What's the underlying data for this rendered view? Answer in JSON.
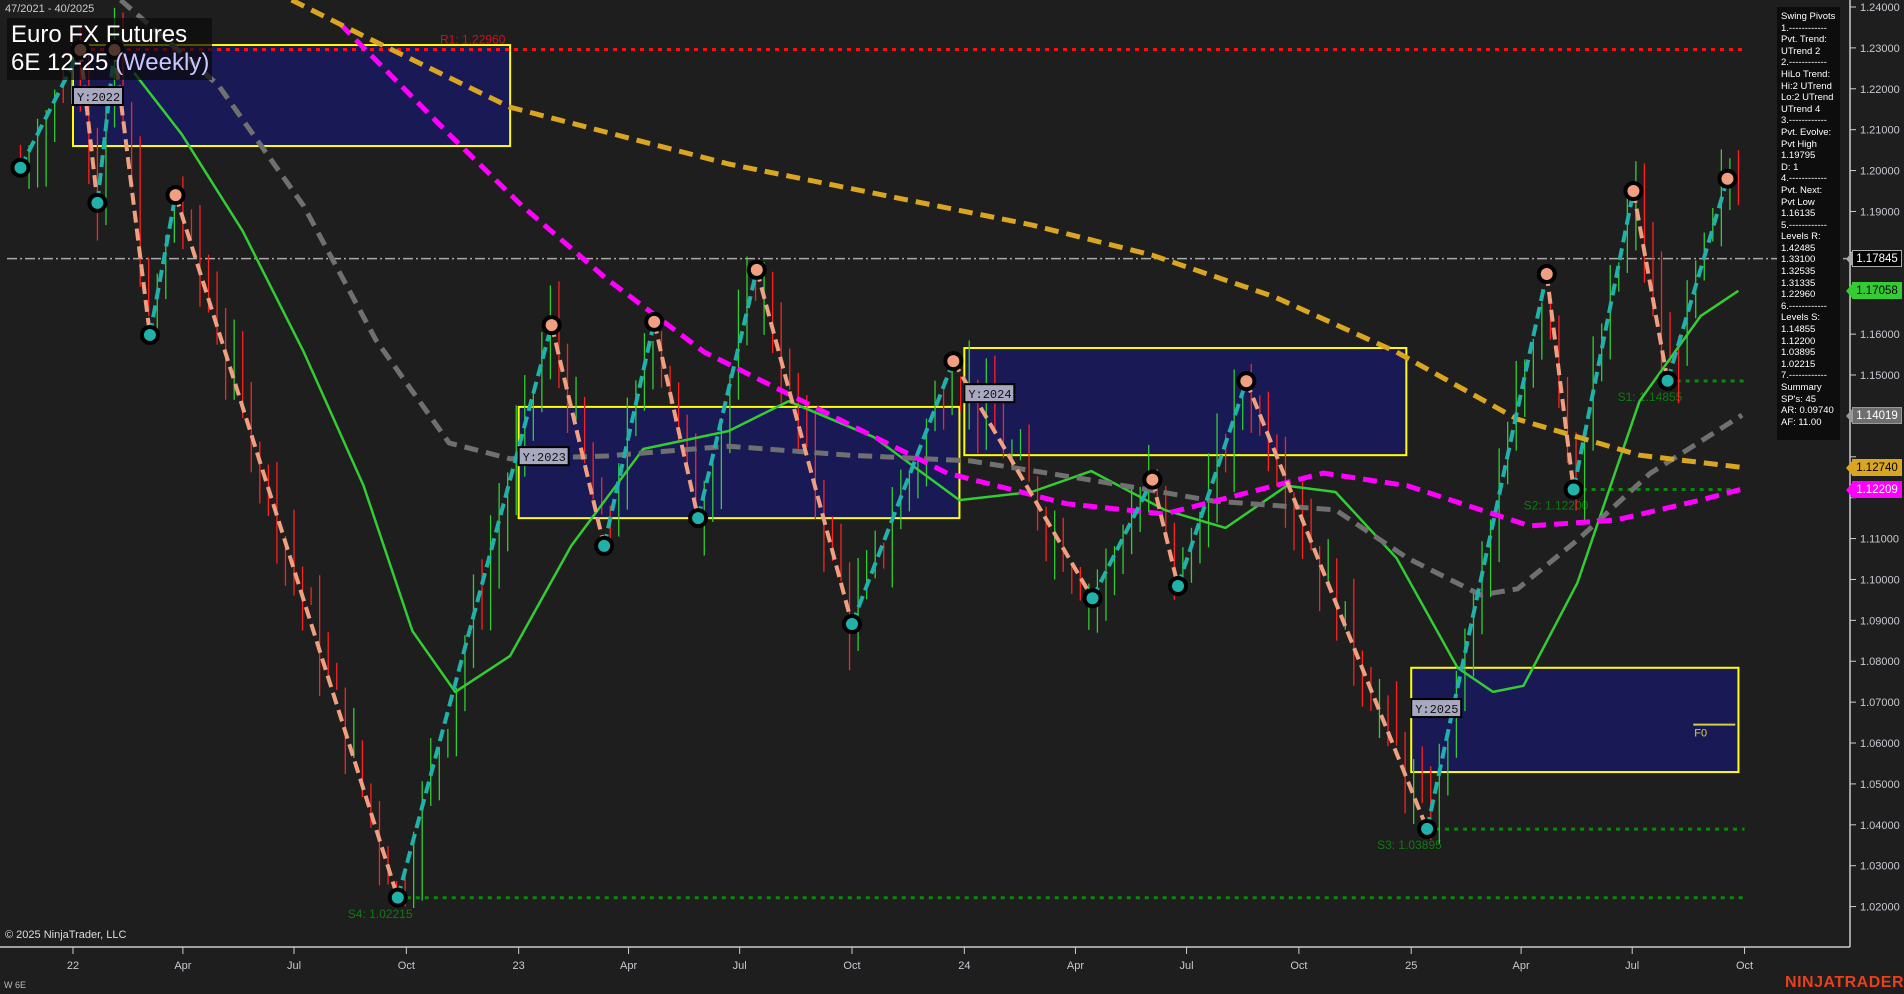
{
  "header": {
    "date_range": "47/2021 - 40/2025",
    "instrument": "Euro FX Futures",
    "contract": "6E 12-25",
    "period": "(Weekly)"
  },
  "info_panel": {
    "lines": [
      "Swing Pivots",
      "1.------------",
      "Pvt. Trend:",
      "UTrend 2",
      "2.------------",
      "HiLo Trend:",
      "Hi:2 UTrend",
      "Lo:2 UTrend",
      "UTrend 4",
      "3.------------",
      "Pvt. Evolve:",
      "Pvt High",
      "1.19795",
      "D: 1",
      "4.------------",
      "Pvt. Next:",
      "Pvt Low",
      "1.16135",
      "5.------------",
      "Levels R:",
      "1.42485",
      "1.33100",
      "1.32535",
      "1.31335",
      "1.22960",
      "6.------------",
      "Levels S:",
      "1.14855",
      "1.12200",
      "1.03895",
      "1.02215",
      "7.------------",
      "Summary",
      "SP's: 45",
      "AR: 0.09740",
      "AF: 11.00"
    ]
  },
  "price_tags": [
    {
      "label": "1.17845",
      "value": 1.17845,
      "bg": "#000000",
      "fg": "#ffffff",
      "border": "#aaaaaa",
      "name": "last-price-tag"
    },
    {
      "label": "1.17058",
      "value": 1.17058,
      "bg": "#33cc33",
      "fg": "#000000",
      "border": "#33cc33",
      "name": "green-ma-tag"
    },
    {
      "label": "1.14019",
      "value": 1.14019,
      "bg": "#6e6e6e",
      "fg": "#ffffff",
      "border": "#999999",
      "name": "gray-ma-tag"
    },
    {
      "label": "1.12740",
      "value": 1.1274,
      "bg": "#daa520",
      "fg": "#000000",
      "border": "#daa520",
      "name": "orange-ma-tag"
    },
    {
      "label": "1.12209",
      "value": 1.12209,
      "bg": "#ff00ff",
      "fg": "#ffffff",
      "border": "#ff00ff",
      "name": "magenta-ma-tag"
    }
  ],
  "footer": {
    "copyright": "© 2025 NinjaTrader, LLC",
    "series_label": "W 6E",
    "brand": "NINJATRADER"
  },
  "colors": {
    "background": "#1e1e1e",
    "up_bar": "#33cc33",
    "down_bar": "#ff2020",
    "pivot_high": "#f0a080",
    "pivot_low": "#20b2aa",
    "fast_ma": "#33cc33",
    "mid_ma": "#707070",
    "slow_ma": "#ff00ff",
    "long_ma": "#daa520",
    "year_box_fill": "#191955",
    "year_box_border": "#ffff00",
    "resistance": "#ff1010",
    "support": "#0a8a0a",
    "last_price_line": "#aaaaaa"
  },
  "chart_data": {
    "type": "line",
    "yaxis": {
      "min": 1.02,
      "max": 1.24,
      "step": 0.01,
      "position": "right",
      "decimals": 5
    },
    "xaxis": {
      "ticks": [
        {
          "label": "22",
          "date": "2022-01-01"
        },
        {
          "label": "Apr",
          "date": "2022-04-01"
        },
        {
          "label": "Jul",
          "date": "2022-07-01"
        },
        {
          "label": "Oct",
          "date": "2022-10-01"
        },
        {
          "label": "23",
          "date": "2023-01-01"
        },
        {
          "label": "Apr",
          "date": "2023-04-01"
        },
        {
          "label": "Jul",
          "date": "2023-07-01"
        },
        {
          "label": "Oct",
          "date": "2023-10-01"
        },
        {
          "label": "24",
          "date": "2024-01-01"
        },
        {
          "label": "Apr",
          "date": "2024-04-01"
        },
        {
          "label": "Jul",
          "date": "2024-07-01"
        },
        {
          "label": "Oct",
          "date": "2024-10-01"
        },
        {
          "label": "25",
          "date": "2025-01-01"
        },
        {
          "label": "Apr",
          "date": "2025-04-01"
        },
        {
          "label": "Jul",
          "date": "2025-07-01"
        },
        {
          "label": "Oct",
          "date": "2025-10-01"
        }
      ]
    },
    "last_price": 1.17845,
    "swing_pivots": [
      {
        "date": "2021-11-19",
        "price": 1.2007,
        "type": "low"
      },
      {
        "date": "2022-01-07",
        "price": 1.2295,
        "type": "high"
      },
      {
        "date": "2022-01-21",
        "price": 1.1921,
        "type": "low"
      },
      {
        "date": "2022-02-04",
        "price": 1.2295,
        "type": "high"
      },
      {
        "date": "2022-03-05",
        "price": 1.1598,
        "type": "low"
      },
      {
        "date": "2022-03-26",
        "price": 1.194,
        "type": "high"
      },
      {
        "date": "2022-09-24",
        "price": 1.0222,
        "type": "low"
      },
      {
        "date": "2023-01-28",
        "price": 1.1622,
        "type": "high"
      },
      {
        "date": "2023-03-12",
        "price": 1.1082,
        "type": "low"
      },
      {
        "date": "2023-04-22",
        "price": 1.163,
        "type": "high"
      },
      {
        "date": "2023-05-28",
        "price": 1.115,
        "type": "low"
      },
      {
        "date": "2023-07-15",
        "price": 1.1757,
        "type": "high"
      },
      {
        "date": "2023-10-01",
        "price": 1.0891,
        "type": "low"
      },
      {
        "date": "2023-12-23",
        "price": 1.1534,
        "type": "high"
      },
      {
        "date": "2024-04-15",
        "price": 1.0954,
        "type": "low"
      },
      {
        "date": "2024-06-03",
        "price": 1.1244,
        "type": "high"
      },
      {
        "date": "2024-06-24",
        "price": 1.0984,
        "type": "low"
      },
      {
        "date": "2024-08-19",
        "price": 1.1485,
        "type": "high"
      },
      {
        "date": "2025-01-14",
        "price": 1.039,
        "type": "low"
      },
      {
        "date": "2025-04-22",
        "price": 1.1747,
        "type": "high"
      },
      {
        "date": "2025-05-14",
        "price": 1.122,
        "type": "low"
      },
      {
        "date": "2025-07-02",
        "price": 1.195,
        "type": "high"
      },
      {
        "date": "2025-07-30",
        "price": 1.1486,
        "type": "low"
      },
      {
        "date": "2025-09-17",
        "price": 1.198,
        "type": "high"
      }
    ],
    "series": [
      {
        "key": "fast",
        "color": "#33cc33",
        "dashed": false,
        "points": [
          [
            "2022-02-20",
            1.2239
          ],
          [
            "2022-03-31",
            1.2089
          ],
          [
            "2022-05-20",
            1.1852
          ],
          [
            "2022-07-09",
            1.1556
          ],
          [
            "2022-08-27",
            1.1229
          ],
          [
            "2022-10-06",
            1.0874
          ],
          [
            "2022-11-10",
            1.0725
          ],
          [
            "2022-12-25",
            1.0813
          ],
          [
            "2023-02-13",
            1.1082
          ],
          [
            "2023-04-13",
            1.1319
          ],
          [
            "2023-06-22",
            1.1363
          ],
          [
            "2023-08-10",
            1.1436
          ],
          [
            "2023-10-19",
            1.1348
          ],
          [
            "2023-12-28",
            1.1194
          ],
          [
            "2024-02-25",
            1.1214
          ],
          [
            "2024-04-14",
            1.1265
          ],
          [
            "2024-06-13",
            1.117
          ],
          [
            "2024-08-02",
            1.1126
          ],
          [
            "2024-09-21",
            1.1229
          ],
          [
            "2024-10-31",
            1.1214
          ],
          [
            "2024-12-20",
            1.1052
          ],
          [
            "2025-02-08",
            1.0784
          ],
          [
            "2025-03-09",
            1.0725
          ],
          [
            "2025-04-03",
            1.074
          ],
          [
            "2025-05-17",
            1.0991
          ],
          [
            "2025-07-07",
            1.1436
          ],
          [
            "2025-08-26",
            1.1644
          ],
          [
            "2025-09-26",
            1.1706
          ]
        ]
      },
      {
        "key": "mid",
        "color": "#707070",
        "dashed": true,
        "points": [
          [
            "2022-02-09",
            1.2417
          ],
          [
            "2022-04-30",
            1.2209
          ],
          [
            "2022-07-09",
            1.1913
          ],
          [
            "2022-09-06",
            1.1586
          ],
          [
            "2022-11-05",
            1.1334
          ],
          [
            "2022-12-25",
            1.1295
          ],
          [
            "2023-03-14",
            1.1302
          ],
          [
            "2023-06-22",
            1.1326
          ],
          [
            "2023-09-29",
            1.1304
          ],
          [
            "2024-01-06",
            1.129
          ],
          [
            "2024-04-14",
            1.1243
          ],
          [
            "2024-07-23",
            1.1192
          ],
          [
            "2024-10-31",
            1.117
          ],
          [
            "2024-12-29",
            1.1052
          ],
          [
            "2025-02-27",
            1.0962
          ],
          [
            "2025-03-29",
            1.0977
          ],
          [
            "2025-05-17",
            1.1096
          ],
          [
            "2025-07-16",
            1.126
          ],
          [
            "2025-09-29",
            1.1402
          ]
        ]
      },
      {
        "key": "slow",
        "color": "#ff00ff",
        "dashed": true,
        "points": [
          [
            "2022-08-08",
            1.2358
          ],
          [
            "2022-11-05",
            1.2089
          ],
          [
            "2023-01-04",
            1.1913
          ],
          [
            "2023-03-14",
            1.1735
          ],
          [
            "2023-06-02",
            1.1556
          ],
          [
            "2023-09-10",
            1.1407
          ],
          [
            "2023-12-18",
            1.126
          ],
          [
            "2024-03-25",
            1.1185
          ],
          [
            "2024-06-13",
            1.116
          ],
          [
            "2024-08-22",
            1.1214
          ],
          [
            "2024-10-21",
            1.126
          ],
          [
            "2024-12-29",
            1.1229
          ],
          [
            "2025-04-08",
            1.1131
          ],
          [
            "2025-06-17",
            1.1145
          ],
          [
            "2025-08-26",
            1.1194
          ],
          [
            "2025-09-29",
            1.1221
          ]
        ]
      },
      {
        "key": "long",
        "color": "#daa520",
        "dashed": true,
        "points": [
          [
            "2022-06-29",
            1.2417
          ],
          [
            "2022-08-27",
            1.2329
          ],
          [
            "2022-12-25",
            1.2155
          ],
          [
            "2023-06-22",
            1.2016
          ],
          [
            "2024-02-25",
            1.1867
          ],
          [
            "2024-06-03",
            1.1793
          ],
          [
            "2024-09-11",
            1.1691
          ],
          [
            "2024-12-20",
            1.1556
          ],
          [
            "2025-03-29",
            1.1392
          ],
          [
            "2025-07-07",
            1.1304
          ],
          [
            "2025-09-29",
            1.1274
          ]
        ]
      }
    ],
    "year_boxes": [
      {
        "label": "Y:2022",
        "start": "2022-01-01",
        "end": "2022-12-25",
        "high": 1.2307,
        "low": 1.206
      },
      {
        "label": "Y:2023",
        "start": "2023-01-01",
        "end": "2023-12-28",
        "high": 1.1422,
        "low": 1.115
      },
      {
        "label": "Y:2024",
        "start": "2024-01-01",
        "end": "2024-12-28",
        "high": 1.1566,
        "low": 1.1304
      },
      {
        "label": "Y:2025",
        "start": "2025-01-01",
        "end": "2025-09-26",
        "high": 1.0784,
        "low": 1.0529
      }
    ],
    "levels": [
      {
        "label": "R1: 1.22960",
        "value": 1.2296,
        "start": "2022-01-01",
        "end": "2025-10-01",
        "kind": "resistance"
      },
      {
        "label": "S1: 1.14855",
        "value": 1.14855,
        "start": "2025-07-30",
        "end": "2025-10-01",
        "kind": "support"
      },
      {
        "label": "S2: 1.12200",
        "value": 1.122,
        "start": "2025-05-14",
        "end": "2025-10-01",
        "kind": "support"
      },
      {
        "label": "S3: 1.03895",
        "value": 1.03895,
        "start": "2025-01-14",
        "end": "2025-10-01",
        "kind": "support"
      },
      {
        "label": "S4: 1.02215",
        "value": 1.02215,
        "start": "2022-09-24",
        "end": "2025-10-01",
        "kind": "support"
      }
    ],
    "fib_marker": {
      "label": "F0",
      "value": 1.0645,
      "date": "2025-08-20"
    }
  }
}
